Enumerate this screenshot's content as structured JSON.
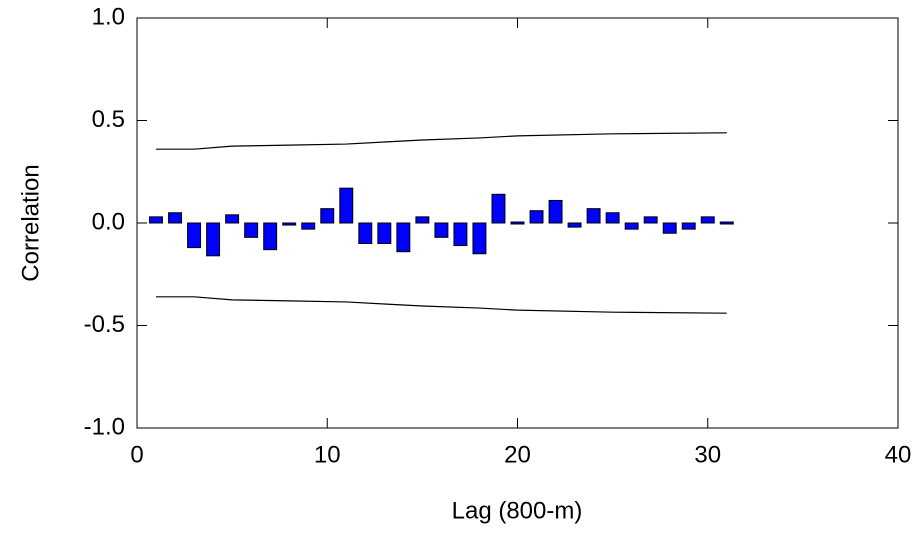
{
  "chart_data": {
    "type": "bar",
    "xlabel": "Lag (800-m)",
    "ylabel": "Correlation",
    "x": [
      1,
      2,
      3,
      4,
      5,
      6,
      7,
      8,
      9,
      10,
      11,
      12,
      13,
      14,
      15,
      16,
      17,
      18,
      19,
      20,
      21,
      22,
      23,
      24,
      25,
      26,
      27,
      28,
      29,
      30,
      31
    ],
    "values": [
      0.03,
      0.05,
      -0.12,
      -0.16,
      0.04,
      -0.07,
      -0.13,
      -0.01,
      -0.03,
      0.07,
      0.17,
      -0.1,
      -0.1,
      -0.14,
      0.03,
      -0.07,
      -0.11,
      -0.15,
      0.14,
      0.0,
      0.06,
      0.11,
      -0.02,
      0.07,
      0.05,
      -0.03,
      0.03,
      -0.05,
      -0.03,
      0.03,
      0.0
    ],
    "color": "#0000ff",
    "lines": [
      {
        "x": [
          1,
          3,
          5,
          8,
          11,
          13,
          15,
          18,
          20,
          25,
          31
        ],
        "values": [
          0.36,
          0.36,
          0.375,
          0.38,
          0.385,
          0.395,
          0.405,
          0.415,
          0.425,
          0.435,
          0.44
        ],
        "color": "#000000"
      },
      {
        "x": [
          1,
          3,
          5,
          8,
          11,
          13,
          15,
          18,
          20,
          25,
          31
        ],
        "values": [
          -0.36,
          -0.36,
          -0.375,
          -0.38,
          -0.385,
          -0.395,
          -0.405,
          -0.415,
          -0.425,
          -0.435,
          -0.44
        ],
        "color": "#000000"
      }
    ],
    "xlim": [
      0,
      40
    ],
    "xticks": [
      0,
      10,
      20,
      30,
      40
    ],
    "ylim": [
      -1,
      1
    ],
    "yticks": [
      {
        "value": -1,
        "label": "-1.0"
      },
      {
        "value": -0.5,
        "label": "-0.5"
      },
      {
        "value": 0,
        "label": "0.0"
      },
      {
        "value": 0.5,
        "label": "0.5"
      },
      {
        "value": 1,
        "label": "1.0"
      }
    ]
  }
}
